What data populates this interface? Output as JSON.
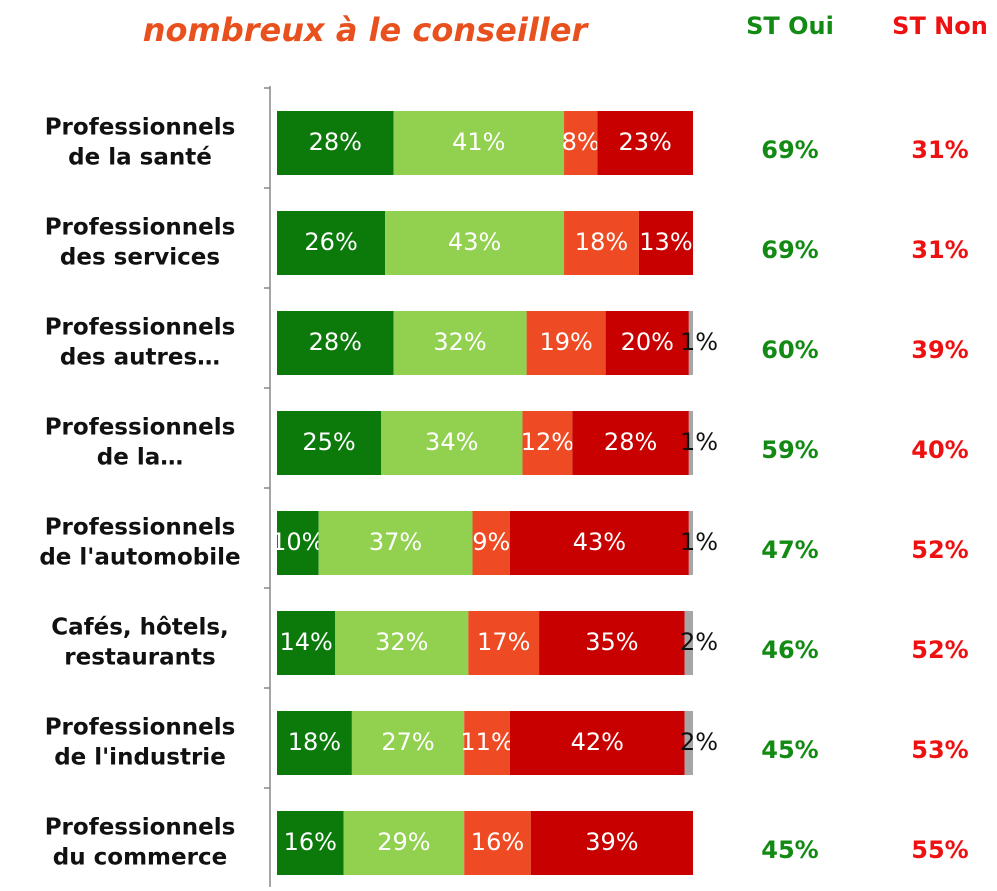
{
  "chart_data": {
    "type": "stacked-bar",
    "orientation": "horizontal",
    "title": "nombreux à le conseiller",
    "title_color": "#e8501e",
    "categories": [
      [
        "Professionnels",
        "de la santé"
      ],
      [
        "Professionnels",
        "des services"
      ],
      [
        "Professionnels",
        "des autres…"
      ],
      [
        "Professionnels",
        "de la…"
      ],
      [
        "Professionnels",
        "de l'automobile"
      ],
      [
        "Cafés, hôtels,",
        "restaurants"
      ],
      [
        "Professionnels",
        "de l'industrie"
      ],
      [
        "Professionnels",
        "du commerce"
      ]
    ],
    "xlim": [
      0,
      100
    ],
    "series": [
      {
        "color": "#0b7a0b",
        "label_color": "#ffffff",
        "values": [
          28,
          26,
          28,
          25,
          10,
          14,
          18,
          16
        ],
        "value_labels": [
          "28%",
          "26%",
          "28%",
          "25%",
          "10%",
          "14%",
          "18%",
          "16%"
        ]
      },
      {
        "color": "#92d050",
        "label_color": "#ffffff",
        "values": [
          41,
          43,
          32,
          34,
          37,
          32,
          27,
          29
        ],
        "value_labels": [
          "41%",
          "43%",
          "32%",
          "34%",
          "37%",
          "32%",
          "27%",
          "29%"
        ]
      },
      {
        "color": "#ee4b24",
        "label_color": "#ffffff",
        "values": [
          8,
          18,
          19,
          12,
          9,
          17,
          11,
          16
        ],
        "value_labels": [
          "8%",
          "18%",
          "19%",
          "12%",
          "9%",
          "17%",
          "11%",
          "16%"
        ]
      },
      {
        "color": "#c80000",
        "label_color": "#ffffff",
        "values": [
          23,
          13,
          20,
          28,
          43,
          35,
          42,
          39
        ],
        "value_labels": [
          "23%",
          "13%",
          "20%",
          "28%",
          "43%",
          "35%",
          "42%",
          "39%"
        ]
      },
      {
        "color": "#a6a6a6",
        "label_color": "#111111",
        "values": [
          null,
          null,
          1,
          1,
          1,
          2,
          2,
          null
        ],
        "value_labels": [
          null,
          null,
          "1%",
          "1%",
          "1%",
          "2%",
          "2%",
          null
        ]
      }
    ],
    "columns": [
      {
        "header": "ST Oui",
        "color": "#138a13",
        "values": [
          69,
          69,
          60,
          59,
          47,
          46,
          45,
          45
        ],
        "value_labels": [
          "69%",
          "69%",
          "60%",
          "59%",
          "47%",
          "46%",
          "45%",
          "45%"
        ]
      },
      {
        "header": "ST Non",
        "color": "#ee1111",
        "values": [
          31,
          31,
          39,
          40,
          52,
          52,
          53,
          55
        ],
        "value_labels": [
          "31%",
          "31%",
          "39%",
          "40%",
          "52%",
          "52%",
          "53%",
          "55%"
        ]
      }
    ]
  }
}
